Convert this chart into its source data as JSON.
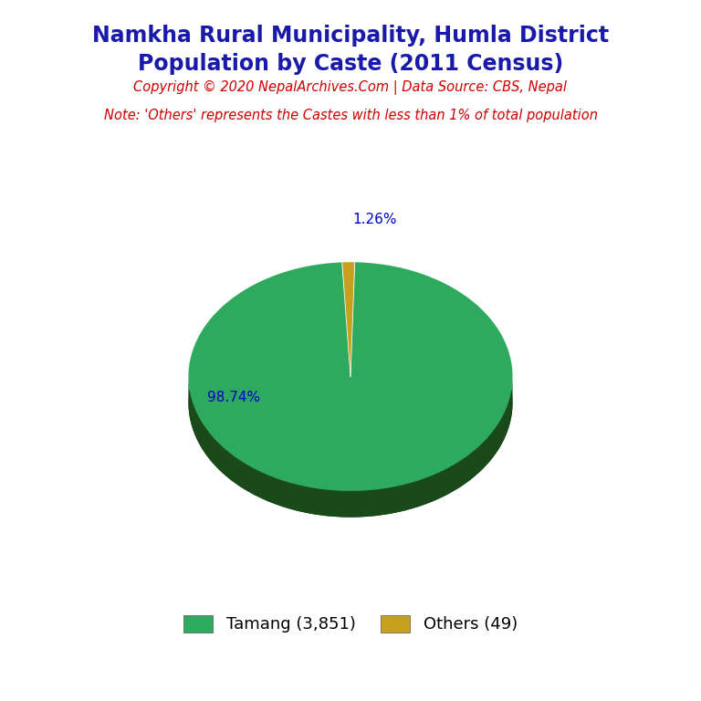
{
  "title_line1": "Namkha Rural Municipality, Humla District",
  "title_line2": "Population by Caste (2011 Census)",
  "copyright_text": "Copyright © 2020 NepalArchives.Com | Data Source: CBS, Nepal",
  "note_text": "Note: 'Others' represents the Castes with less than 1% of total population",
  "labels": [
    "Tamang",
    "Others"
  ],
  "values": [
    3851,
    49
  ],
  "percentages": [
    "98.74%",
    "1.26%"
  ],
  "colors": [
    "#2eaa5e",
    "#c8a020"
  ],
  "shadow_color": "#1a4a1a",
  "title_color": "#1a1aaa",
  "copyright_color": "#cc0000",
  "note_color": "#cc0000",
  "pct_color": "#0000cc",
  "legend_labels": [
    "Tamang (3,851)",
    "Others (49)"
  ],
  "background_color": "#ffffff"
}
